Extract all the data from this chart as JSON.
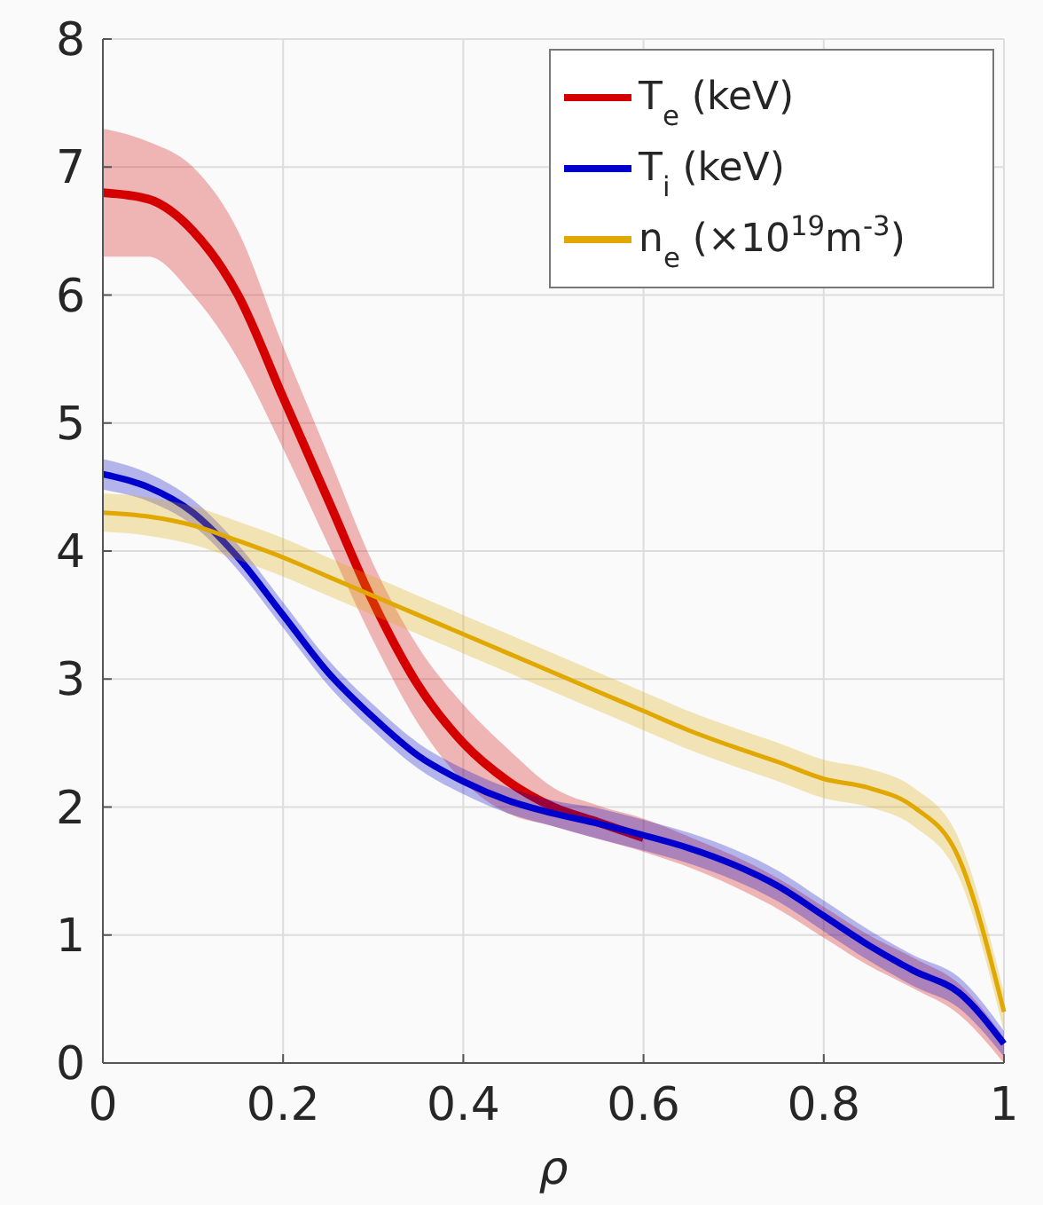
{
  "chart_data": {
    "type": "line",
    "xlabel": "ρ",
    "xlim": [
      0,
      1
    ],
    "xticks": [
      0,
      {
        "value": 0.2,
        "label": "0.2"
      },
      {
        "value": 0.4,
        "label": "0.4"
      },
      {
        "value": 0.6,
        "label": "0.6"
      },
      {
        "value": 0.8,
        "label": "0.8"
      },
      1
    ],
    "ylim": [
      0,
      8
    ],
    "yticks": [
      0,
      1,
      2,
      3,
      4,
      5,
      6,
      7,
      8
    ],
    "grid": true,
    "legend": "top right",
    "line_style": "solid",
    "marker": "none",
    "x": [
      0,
      0.05,
      0.1,
      0.15,
      0.2,
      0.25,
      0.3,
      0.35,
      0.4,
      0.45,
      0.5,
      0.55,
      0.6,
      0.65,
      0.7,
      0.75,
      0.8,
      0.85,
      0.9,
      0.95,
      1
    ],
    "series": [
      {
        "name": "T$_{e}$ (keV)",
        "color": "#d40000",
        "values": [
          6.8,
          6.75,
          6.5,
          6.0,
          5.2,
          4.4,
          3.6,
          2.95,
          2.5,
          2.2,
          2.0,
          1.88,
          1.76,
          null,
          null,
          null,
          null,
          null,
          null,
          null,
          null
        ],
        "lower": [
          6.3,
          6.3,
          6.0,
          5.5,
          4.8,
          4.05,
          3.3,
          2.65,
          2.2,
          1.95,
          1.85,
          1.75,
          1.65,
          1.53,
          1.38,
          1.2,
          0.98,
          0.76,
          0.58,
          0.38,
          0.0
        ],
        "upper": [
          7.3,
          7.2,
          7.0,
          6.5,
          5.6,
          4.75,
          3.9,
          3.25,
          2.8,
          2.45,
          2.15,
          2.01,
          1.91,
          1.77,
          1.62,
          1.44,
          1.22,
          1.0,
          0.82,
          0.62,
          0.2
        ]
      },
      {
        "name": "T$_{i}$ (keV)",
        "color": "#0000cc",
        "values": [
          4.6,
          4.5,
          4.3,
          3.95,
          3.5,
          3.05,
          2.7,
          2.4,
          2.2,
          2.05,
          1.95,
          1.87,
          1.78,
          1.68,
          1.55,
          1.38,
          1.15,
          0.92,
          0.72,
          0.55,
          0.15
        ],
        "lower": [
          4.48,
          4.39,
          4.2,
          3.85,
          3.4,
          2.95,
          2.6,
          2.3,
          2.1,
          1.95,
          1.85,
          1.75,
          1.66,
          1.56,
          1.43,
          1.26,
          1.03,
          0.8,
          0.6,
          0.43,
          0.05
        ],
        "upper": [
          4.72,
          4.61,
          4.4,
          4.05,
          3.6,
          3.15,
          2.8,
          2.5,
          2.3,
          2.15,
          2.05,
          1.99,
          1.9,
          1.8,
          1.67,
          1.5,
          1.27,
          1.04,
          0.84,
          0.67,
          0.25
        ]
      },
      {
        "name": "n$_{e}$ (×10$^{19}$m$^{-3}$)",
        "color": "#e0a800",
        "values": [
          4.3,
          4.27,
          4.2,
          4.08,
          3.95,
          3.8,
          3.65,
          3.5,
          3.35,
          3.2,
          3.05,
          2.9,
          2.75,
          2.6,
          2.47,
          2.35,
          2.22,
          2.15,
          2.0,
          1.6,
          0.4
        ],
        "lower": [
          4.15,
          4.12,
          4.05,
          3.93,
          3.8,
          3.65,
          3.5,
          3.35,
          3.2,
          3.05,
          2.9,
          2.75,
          2.6,
          2.45,
          2.32,
          2.2,
          2.07,
          2.0,
          1.85,
          1.45,
          0.25
        ],
        "upper": [
          4.45,
          4.42,
          4.35,
          4.23,
          4.1,
          3.95,
          3.8,
          3.65,
          3.5,
          3.35,
          3.2,
          3.05,
          2.9,
          2.75,
          2.62,
          2.5,
          2.37,
          2.3,
          2.15,
          1.75,
          0.55
        ]
      }
    ]
  }
}
